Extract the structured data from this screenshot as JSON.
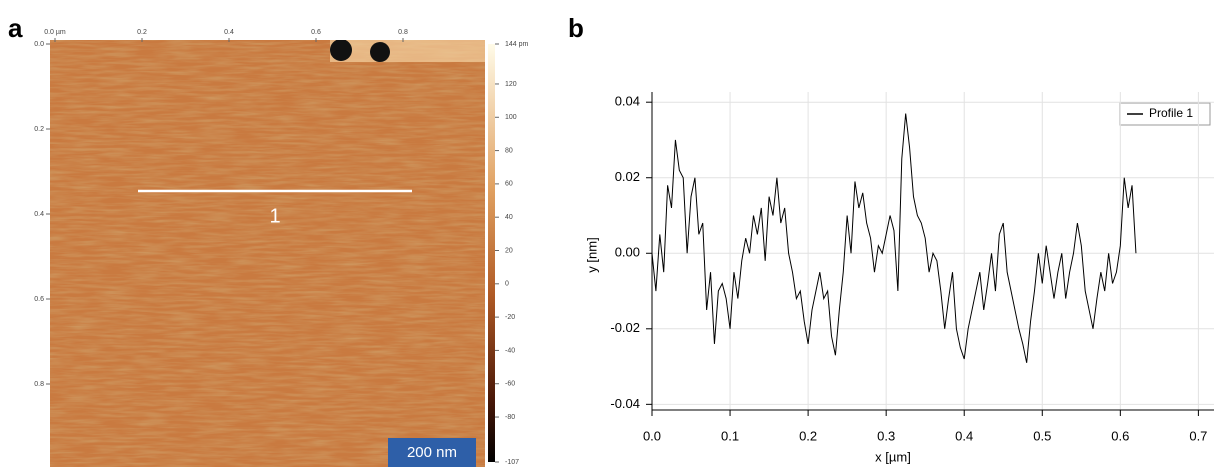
{
  "chart_data": [
    {
      "type": "image-map",
      "label": "a",
      "xticks": [
        {
          "value": 0,
          "label": "0.0 µm"
        },
        0.2,
        0.4,
        0.6,
        0.8
      ],
      "yticks": [
        {
          "value": 0,
          "label": "0.0"
        },
        0.2,
        0.4,
        0.6,
        0.8
      ],
      "xlim": [
        0,
        1
      ],
      "ylim": [
        0,
        1
      ],
      "clim": [
        -107,
        144
      ],
      "cticks": [
        {
          "value": 144,
          "label": "144 pm"
        },
        120,
        100,
        80,
        60,
        40,
        20,
        0,
        -20,
        -40,
        -60,
        -80,
        -107
      ],
      "profile_label": "1",
      "scale_bar": "200 nm"
    },
    {
      "type": "line",
      "label": "b",
      "xlabel": "x [µm]",
      "ylabel": "y [nm]",
      "xlim": [
        0,
        0.72
      ],
      "ylim": [
        -0.0415,
        0.0427
      ],
      "xticks": [
        {
          "value": 0,
          "label": "0.0"
        },
        0.1,
        0.2,
        0.3,
        0.4,
        0.5,
        0.6,
        0.7
      ],
      "yticks": [
        -0.04,
        -0.02,
        {
          "value": 0,
          "label": "0.00"
        },
        0.02,
        0.04
      ],
      "grid": true,
      "legend": "upper right",
      "x": [
        0,
        0.005,
        0.01,
        0.015,
        0.02,
        0.025,
        0.03,
        0.035,
        0.04,
        0.045,
        0.05,
        0.055,
        0.06,
        0.065,
        0.07,
        0.075,
        0.08,
        0.085,
        0.09,
        0.095,
        0.1,
        0.105,
        0.11,
        0.115,
        0.12,
        0.125,
        0.13,
        0.135,
        0.14,
        0.145,
        0.15,
        0.155,
        0.16,
        0.165,
        0.17,
        0.175,
        0.18,
        0.185,
        0.19,
        0.195,
        0.2,
        0.205,
        0.21,
        0.215,
        0.22,
        0.225,
        0.23,
        0.235,
        0.24,
        0.245,
        0.25,
        0.255,
        0.26,
        0.265,
        0.27,
        0.275,
        0.28,
        0.285,
        0.29,
        0.295,
        0.3,
        0.305,
        0.31,
        0.315,
        0.32,
        0.325,
        0.33,
        0.335,
        0.34,
        0.345,
        0.35,
        0.355,
        0.36,
        0.365,
        0.37,
        0.375,
        0.38,
        0.385,
        0.39,
        0.395,
        0.4,
        0.405,
        0.41,
        0.415,
        0.42,
        0.425,
        0.43,
        0.435,
        0.44,
        0.445,
        0.45,
        0.455,
        0.46,
        0.465,
        0.47,
        0.475,
        0.48,
        0.485,
        0.49,
        0.495,
        0.5,
        0.505,
        0.51,
        0.515,
        0.52,
        0.525,
        0.53,
        0.535,
        0.54,
        0.545,
        0.55,
        0.555,
        0.56,
        0.565,
        0.57,
        0.575,
        0.58,
        0.585,
        0.59,
        0.595,
        0.6,
        0.605,
        0.61,
        0.615,
        0.62
      ],
      "series": [
        {
          "name": "Profile 1",
          "color": "#000000",
          "values": [
            0,
            -0.01,
            0.005,
            -0.005,
            0.018,
            0.012,
            0.03,
            0.022,
            0.02,
            0,
            0.015,
            0.02,
            0.005,
            0.008,
            -0.015,
            -0.005,
            -0.024,
            -0.01,
            -0.008,
            -0.012,
            -0.02,
            -0.005,
            -0.012,
            -0.002,
            0.004,
            0,
            0.01,
            0.005,
            0.012,
            -0.002,
            0.015,
            0.01,
            0.02,
            0.008,
            0.012,
            0,
            -0.005,
            -0.012,
            -0.01,
            -0.018,
            -0.024,
            -0.015,
            -0.01,
            -0.005,
            -0.012,
            -0.01,
            -0.022,
            -0.027,
            -0.015,
            -0.005,
            0.01,
            0,
            0.019,
            0.012,
            0.016,
            0.008,
            0.004,
            -0.005,
            0.002,
            0,
            0.005,
            0.01,
            0.006,
            -0.01,
            0.025,
            0.037,
            0.028,
            0.015,
            0.01,
            0.008,
            0.004,
            -0.005,
            0,
            -0.002,
            -0.01,
            -0.02,
            -0.012,
            -0.005,
            -0.02,
            -0.025,
            -0.028,
            -0.02,
            -0.015,
            -0.01,
            -0.005,
            -0.015,
            -0.008,
            0,
            -0.01,
            0.005,
            0.008,
            -0.005,
            -0.01,
            -0.015,
            -0.02,
            -0.024,
            -0.029,
            -0.018,
            -0.01,
            0,
            -0.008,
            0.002,
            -0.005,
            -0.012,
            -0.005,
            0,
            -0.012,
            -0.005,
            0,
            0.008,
            0.002,
            -0.01,
            -0.015,
            -0.02,
            -0.012,
            -0.005,
            -0.01,
            0,
            -0.008,
            -0.005,
            0.002,
            0.02,
            0.012,
            0.018,
            0
          ]
        }
      ]
    }
  ]
}
